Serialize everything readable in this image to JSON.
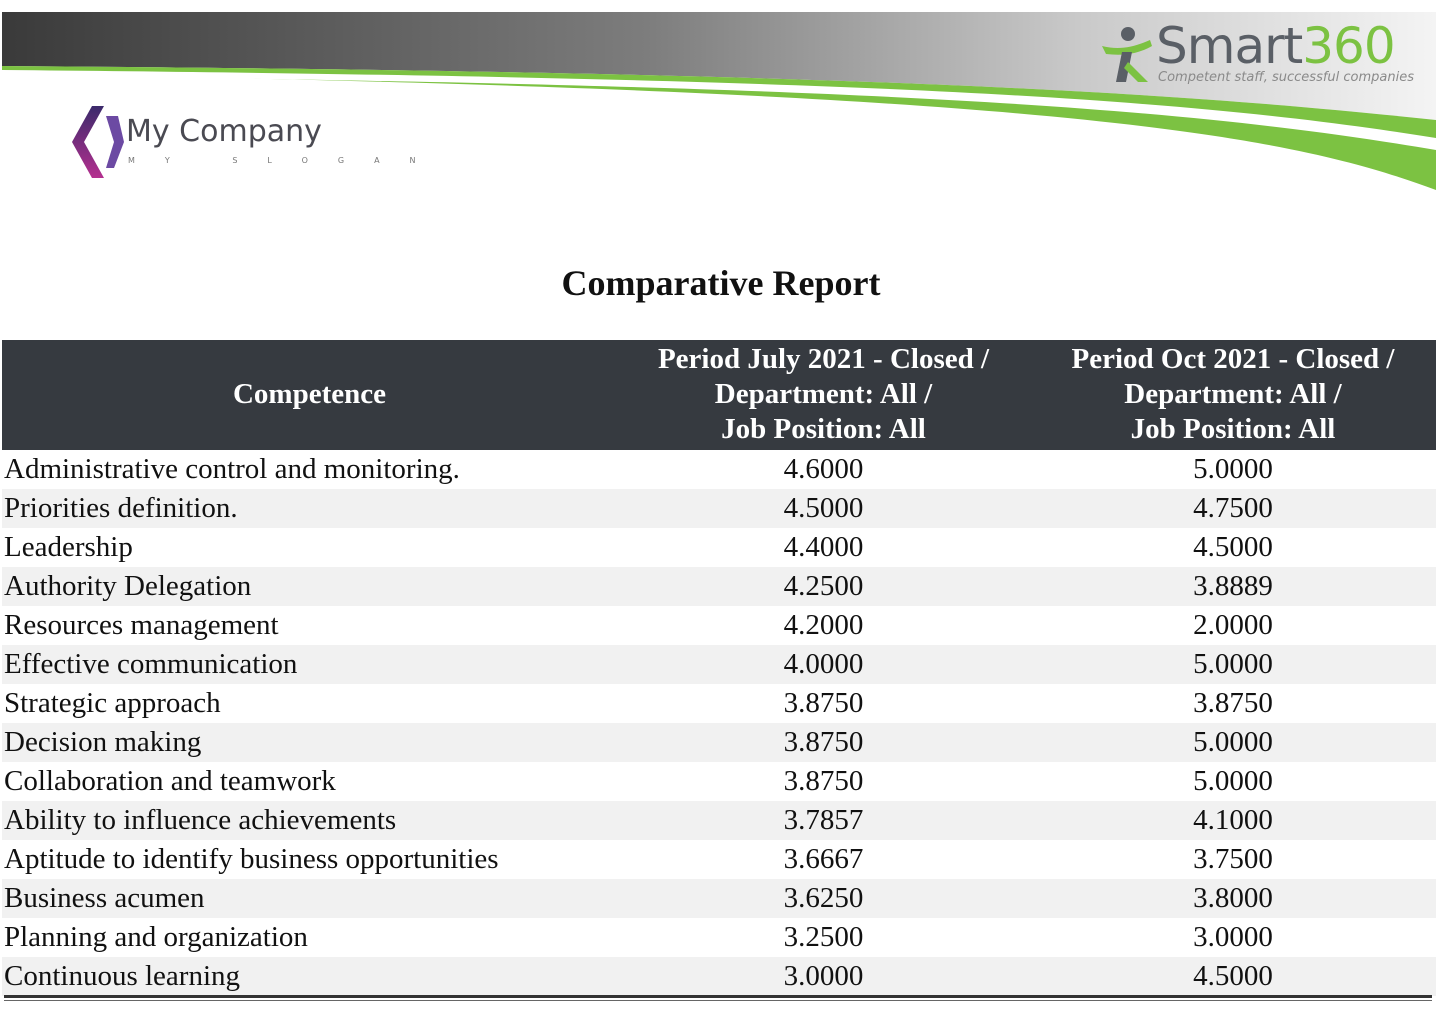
{
  "header": {
    "brand": {
      "part1": "Smart",
      "part2": "360",
      "tagline": "Competent staff, successful companies",
      "accent": "#7cc242"
    },
    "company": {
      "name": "My Company",
      "slogan": "MY SLOGAN",
      "mark_color": "#7b2f8f"
    }
  },
  "report": {
    "title": "Comparative Report",
    "columns": {
      "competence": "Competence",
      "period1": [
        "Period July 2021 - Closed /",
        "Department: All /",
        "Job Position: All"
      ],
      "period2": [
        "Period Oct 2021 - Closed /",
        "Department: All /",
        "Job Position: All"
      ]
    },
    "rows": [
      {
        "competence": "Administrative control and monitoring.",
        "p1": "4.6000",
        "p2": "5.0000"
      },
      {
        "competence": "Priorities definition.",
        "p1": "4.5000",
        "p2": "4.7500"
      },
      {
        "competence": "Leadership",
        "p1": "4.4000",
        "p2": "4.5000"
      },
      {
        "competence": "Authority Delegation",
        "p1": "4.2500",
        "p2": "3.8889"
      },
      {
        "competence": "Resources management",
        "p1": "4.2000",
        "p2": "2.0000"
      },
      {
        "competence": "Effective communication",
        "p1": "4.0000",
        "p2": "5.0000"
      },
      {
        "competence": "Strategic approach",
        "p1": "3.8750",
        "p2": "3.8750"
      },
      {
        "competence": "Decision making",
        "p1": "3.8750",
        "p2": "5.0000"
      },
      {
        "competence": "Collaboration and teamwork",
        "p1": "3.8750",
        "p2": "5.0000"
      },
      {
        "competence": "Ability to influence achievements",
        "p1": "3.7857",
        "p2": "4.1000"
      },
      {
        "competence": "Aptitude to identify business opportunities",
        "p1": "3.6667",
        "p2": "3.7500"
      },
      {
        "competence": "Business acumen",
        "p1": "3.6250",
        "p2": "3.8000"
      },
      {
        "competence": "Planning and organization",
        "p1": "3.2500",
        "p2": "3.0000"
      },
      {
        "competence": "Continuous learning",
        "p1": "3.0000",
        "p2": "4.5000"
      }
    ]
  }
}
